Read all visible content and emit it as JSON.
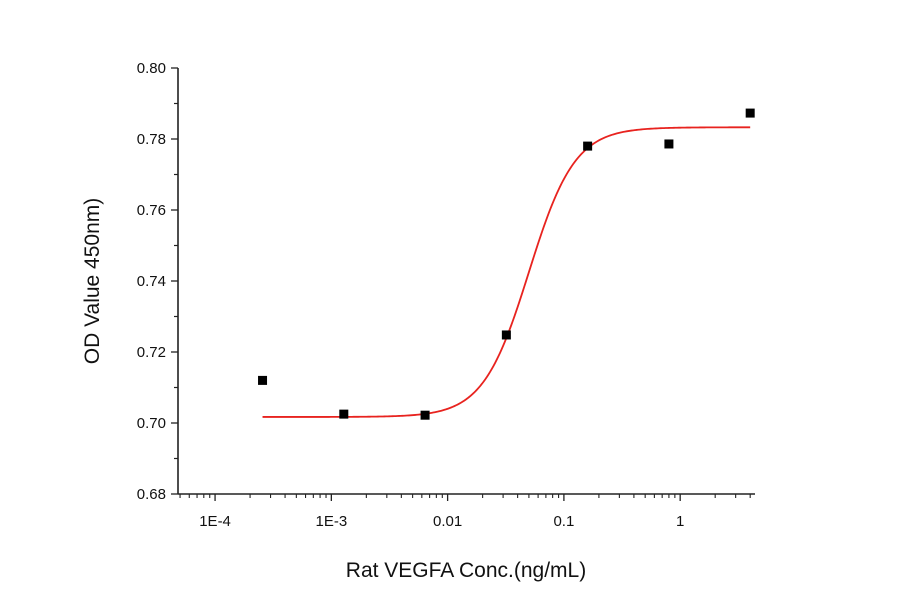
{
  "chart_data": {
    "type": "scatter",
    "title": "",
    "xlabel": "Rat VEGFA Conc.(ng/mL)",
    "ylabel": "OD Value 450nm)",
    "x_scale": "log",
    "xlim": [
      4.8e-05,
      4.4
    ],
    "ylim": [
      0.68,
      0.8
    ],
    "x_ticks": [
      {
        "value": 0.0001,
        "label": "1E-4"
      },
      {
        "value": 0.001,
        "label": "1E-3"
      },
      {
        "value": 0.01,
        "label": "0.01"
      },
      {
        "value": 0.1,
        "label": "0.1"
      },
      {
        "value": 1,
        "label": "1"
      }
    ],
    "y_ticks": [
      {
        "value": 0.68,
        "label": "0.68"
      },
      {
        "value": 0.7,
        "label": "0.70"
      },
      {
        "value": 0.72,
        "label": "0.72"
      },
      {
        "value": 0.74,
        "label": "0.74"
      },
      {
        "value": 0.76,
        "label": "0.76"
      },
      {
        "value": 0.78,
        "label": "0.78"
      },
      {
        "value": 0.8,
        "label": "0.80"
      }
    ],
    "grid": false,
    "series": [
      {
        "kind": "points",
        "marker": "square",
        "color": "#000000",
        "x": [
          0.000256,
          0.00128,
          0.0064,
          0.032,
          0.16,
          0.8,
          4.0
        ],
        "y": [
          0.712,
          0.7025,
          0.7022,
          0.7248,
          0.778,
          0.7786,
          0.7873
        ]
      },
      {
        "kind": "fit-curve",
        "model": "four-parameter logistic",
        "color": "#e8231f",
        "bottom": 0.7017,
        "top": 0.7833,
        "ec50": 0.05,
        "hill": 2.2,
        "x_range": [
          0.000256,
          4.0
        ]
      }
    ]
  }
}
